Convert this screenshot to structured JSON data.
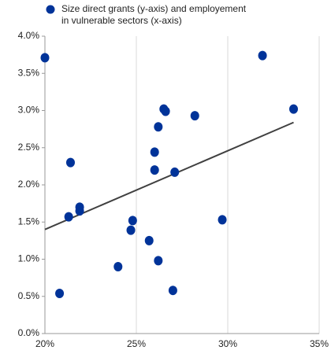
{
  "chart_data": {
    "type": "scatter",
    "series": [
      {
        "name": "Size direct grants (y-axis) and employement in vulnerable sectors (x-axis)",
        "color": "#003399",
        "x": [
          20.0,
          20.8,
          21.4,
          21.3,
          21.9,
          21.9,
          24.0,
          24.7,
          24.8,
          25.7,
          26.2,
          27.0,
          26.0,
          26.0,
          26.2,
          26.5,
          26.6,
          27.1,
          28.2,
          29.7,
          31.9,
          33.6
        ],
        "values": [
          3.71,
          0.54,
          2.3,
          1.57,
          1.65,
          1.7,
          0.9,
          1.39,
          1.52,
          1.25,
          0.98,
          0.58,
          2.44,
          2.2,
          2.78,
          3.02,
          2.99,
          2.17,
          2.93,
          1.53,
          3.74,
          3.02
        ]
      }
    ],
    "trendline": {
      "color": "#404040",
      "x": [
        20,
        33.6
      ],
      "values": [
        1.4,
        2.84
      ]
    },
    "xlim": [
      20,
      35
    ],
    "xticks": [
      {
        "value": 20,
        "label": "20%"
      },
      {
        "value": 25,
        "label": "25%"
      },
      {
        "value": 30,
        "label": "30%"
      },
      {
        "value": 35,
        "label": "35%"
      }
    ],
    "ylim": [
      0,
      4
    ],
    "yticks": [
      {
        "value": 0,
        "label": "0.0%"
      },
      {
        "value": 0.5,
        "label": "0.5%"
      },
      {
        "value": 1,
        "label": "1.0%"
      },
      {
        "value": 1.5,
        "label": "1.5%"
      },
      {
        "value": 2,
        "label": "2.0%"
      },
      {
        "value": 2.5,
        "label": "2.5%"
      },
      {
        "value": 3,
        "label": "3.0%"
      },
      {
        "value": 3.5,
        "label": "3.5%"
      },
      {
        "value": 4,
        "label": "4.0%"
      }
    ],
    "grid": "x"
  }
}
